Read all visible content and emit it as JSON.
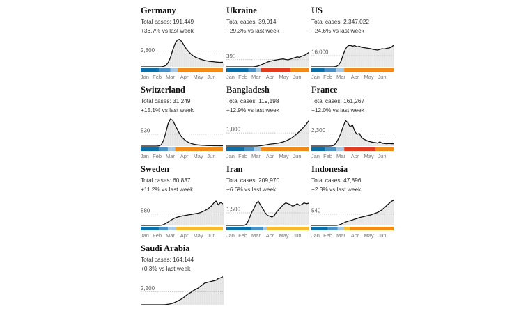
{
  "colors": {
    "line": "#121212",
    "area": "#e6e6e6",
    "ref_line": "#b5b5b5",
    "phase_dark_blue": "#0f6da5",
    "phase_blue": "#4a90c2",
    "phase_light_blue": "#a7c8e0",
    "phase_red": "#e33b20",
    "phase_orange": "#f18a16",
    "phase_yellow": "#f5b932"
  },
  "months": [
    "Jan",
    "Feb",
    "Mar",
    "Apr",
    "May",
    "Jun"
  ],
  "chart_data": [
    {
      "type": "area",
      "country": "Germany",
      "total_cases": "Total cases: 191,449",
      "change": "+36.7% vs last week",
      "ref_label": "2,800",
      "ylim": [
        0,
        6400
      ],
      "y": [
        0,
        0,
        0,
        0,
        0,
        0,
        0,
        0,
        5,
        20,
        80,
        300,
        900,
        2000,
        3600,
        5000,
        5800,
        6000,
        5500,
        4700,
        3900,
        3300,
        2800,
        2400,
        2100,
        1900,
        1700,
        1550,
        1400,
        1300,
        1200,
        1150,
        1100,
        1050,
        1000,
        980,
        1000
      ],
      "ref_value": 2800,
      "phases": [
        [
          "phase_dark_blue",
          0,
          0.22
        ],
        [
          "phase_blue",
          0.22,
          0.36
        ],
        [
          "phase_light_blue",
          0.36,
          0.45
        ],
        [
          "phase_orange",
          0.45,
          1
        ]
      ]
    },
    {
      "type": "area",
      "country": "Ukraine",
      "total_cases": "Total cases: 39,014",
      "change": "+29.3% vs last week",
      "ref_label": "390",
      "ylim": [
        0,
        1600
      ],
      "y": [
        0,
        0,
        0,
        0,
        0,
        0,
        0,
        0,
        0,
        0,
        0,
        0,
        5,
        20,
        50,
        100,
        150,
        200,
        260,
        300,
        330,
        350,
        380,
        400,
        420,
        430,
        400,
        380,
        420,
        460,
        500,
        540,
        520,
        580,
        620,
        680,
        780
      ],
      "ref_value": 390,
      "phases": [
        [
          "phase_dark_blue",
          0,
          0.27
        ],
        [
          "phase_blue",
          0.27,
          0.36
        ],
        [
          "phase_light_blue",
          0.36,
          0.42
        ],
        [
          "phase_red",
          0.42,
          0.78
        ],
        [
          "phase_orange",
          0.78,
          1
        ]
      ]
    },
    {
      "type": "area",
      "country": "US",
      "total_cases": "Total cases: 2,347,022",
      "change": "+24.6% vs last week",
      "ref_label": "16,000",
      "ylim": [
        0,
        42000
      ],
      "y": [
        0,
        0,
        0,
        0,
        0,
        0,
        0,
        0,
        0,
        0,
        50,
        500,
        3000,
        8000,
        18000,
        26000,
        30000,
        31000,
        29500,
        30500,
        28500,
        29500,
        28000,
        27500,
        27000,
        26500,
        26000,
        25000,
        24500,
        24000,
        25000,
        26000,
        25500,
        26500,
        27000,
        28000,
        31000
      ],
      "ref_value": 16000,
      "phases": [
        [
          "phase_dark_blue",
          0,
          0.16
        ],
        [
          "phase_blue",
          0.16,
          0.3
        ],
        [
          "phase_light_blue",
          0.3,
          0.4
        ],
        [
          "phase_orange",
          0.4,
          1
        ]
      ]
    },
    {
      "type": "area",
      "country": "Switzerland",
      "total_cases": "Total cases: 31,249",
      "change": "+15.1% vs last week",
      "ref_label": "530",
      "ylim": [
        0,
        1300
      ],
      "y": [
        0,
        0,
        0,
        0,
        0,
        0,
        0,
        0,
        10,
        60,
        250,
        600,
        1000,
        1200,
        1150,
        950,
        750,
        550,
        400,
        300,
        220,
        160,
        120,
        90,
        70,
        55,
        45,
        35,
        30,
        25,
        20,
        20,
        18,
        15,
        15,
        14,
        15
      ],
      "ref_value": 530,
      "phases": [
        [
          "phase_dark_blue",
          0,
          0.22
        ],
        [
          "phase_blue",
          0.22,
          0.33
        ],
        [
          "phase_light_blue",
          0.33,
          0.42
        ],
        [
          "phase_orange",
          0.42,
          1
        ]
      ]
    },
    {
      "type": "area",
      "country": "Bangladesh",
      "total_cases": "Total cases: 119,198",
      "change": "+12.9% vs last week",
      "ref_label": "1,800",
      "ylim": [
        0,
        4000
      ],
      "y": [
        0,
        0,
        0,
        0,
        0,
        0,
        0,
        0,
        0,
        0,
        0,
        0,
        0,
        5,
        20,
        50,
        100,
        150,
        200,
        260,
        300,
        330,
        370,
        420,
        500,
        580,
        700,
        850,
        1000,
        1200,
        1450,
        1700,
        2000,
        2300,
        2650,
        3000,
        3450
      ],
      "ref_value": 1800,
      "phases": [
        [
          "phase_dark_blue",
          0,
          0.22
        ],
        [
          "phase_blue",
          0.22,
          0.34
        ],
        [
          "phase_light_blue",
          0.34,
          0.42
        ],
        [
          "phase_orange",
          0.42,
          1
        ]
      ]
    },
    {
      "type": "area",
      "country": "France",
      "total_cases": "Total cases: 161,267",
      "change": "+12.0% vs last week",
      "ref_label": "2,300",
      "ylim": [
        0,
        5500
      ],
      "y": [
        0,
        0,
        0,
        0,
        0,
        0,
        0,
        0,
        5,
        30,
        200,
        700,
        1500,
        2500,
        3800,
        4800,
        4400,
        3600,
        4000,
        2800,
        2200,
        2400,
        1600,
        1300,
        1100,
        900,
        800,
        700,
        650,
        550,
        800,
        550,
        500,
        450,
        500,
        450,
        450
      ],
      "ref_value": 2300,
      "phases": [
        [
          "phase_dark_blue",
          0,
          0.17
        ],
        [
          "phase_blue",
          0.17,
          0.3
        ],
        [
          "phase_light_blue",
          0.3,
          0.4
        ],
        [
          "phase_red",
          0.4,
          0.78
        ],
        [
          "phase_orange",
          0.78,
          1
        ]
      ]
    },
    {
      "type": "area",
      "country": "Sweden",
      "total_cases": "Total cases: 60,837",
      "change": "+11.2% vs last week",
      "ref_label": "580",
      "ylim": [
        0,
        1500
      ],
      "y": [
        0,
        0,
        0,
        0,
        0,
        0,
        0,
        0,
        0,
        10,
        40,
        100,
        170,
        250,
        320,
        380,
        420,
        450,
        480,
        500,
        520,
        540,
        560,
        580,
        600,
        620,
        650,
        700,
        750,
        820,
        900,
        1000,
        1150,
        1250,
        1050,
        1180,
        1100
      ],
      "ref_value": 580,
      "phases": [
        [
          "phase_dark_blue",
          0,
          0.22
        ],
        [
          "phase_blue",
          0.22,
          0.33
        ],
        [
          "phase_light_blue",
          0.33,
          0.43
        ],
        [
          "phase_yellow",
          0.43,
          1
        ]
      ]
    },
    {
      "type": "area",
      "country": "Iran",
      "total_cases": "Total cases: 209,970",
      "change": "+6.6% vs last week",
      "ref_label": "1,500",
      "ylim": [
        0,
        3500
      ],
      "y": [
        0,
        0,
        0,
        0,
        0,
        0,
        0,
        0,
        20,
        200,
        800,
        1500,
        2000,
        2600,
        2900,
        2400,
        2000,
        1500,
        1200,
        1100,
        1000,
        1200,
        1600,
        1900,
        2200,
        2500,
        2700,
        2600,
        2500,
        2300,
        2400,
        2600,
        2400,
        2500,
        2700,
        2600,
        2650
      ],
      "ref_value": 1500,
      "phases": [
        [
          "phase_dark_blue",
          0,
          0.3
        ],
        [
          "phase_blue",
          0.3,
          0.45
        ],
        [
          "phase_light_blue",
          0.45,
          0.5
        ],
        [
          "phase_yellow",
          0.5,
          1
        ]
      ]
    },
    {
      "type": "area",
      "country": "Indonesia",
      "total_cases": "Total cases: 47,896",
      "change": "+2.3% vs last week",
      "ref_label": "540",
      "ylim": [
        0,
        1400
      ],
      "y": [
        0,
        0,
        0,
        0,
        0,
        0,
        0,
        0,
        0,
        0,
        0,
        0,
        20,
        60,
        110,
        160,
        200,
        230,
        260,
        300,
        330,
        370,
        400,
        420,
        450,
        480,
        500,
        540,
        580,
        620,
        680,
        750,
        850,
        950,
        1050,
        1150,
        1200
      ],
      "ref_value": 540,
      "phases": [
        [
          "phase_dark_blue",
          0,
          0.2
        ],
        [
          "phase_blue",
          0.2,
          0.32
        ],
        [
          "phase_light_blue",
          0.32,
          0.4
        ],
        [
          "phase_yellow",
          0.4,
          0.47
        ],
        [
          "phase_orange",
          0.47,
          1
        ]
      ]
    },
    {
      "type": "area",
      "country": "Saudi Arabia",
      "total_cases": "Total cases: 164,144",
      "change": "+0.3% vs last week",
      "ref_label": "2,200",
      "ylim": [
        0,
        5000
      ],
      "y": [
        0,
        0,
        0,
        0,
        0,
        0,
        0,
        0,
        0,
        0,
        0,
        20,
        80,
        150,
        250,
        400,
        600,
        800,
        1000,
        1300,
        1600,
        1900,
        2100,
        2400,
        2600,
        2800,
        3100,
        3400,
        3700,
        3800,
        3900,
        4000,
        4100,
        4200,
        4500,
        4600,
        4800
      ],
      "ref_value": 2200,
      "phases": []
    }
  ]
}
